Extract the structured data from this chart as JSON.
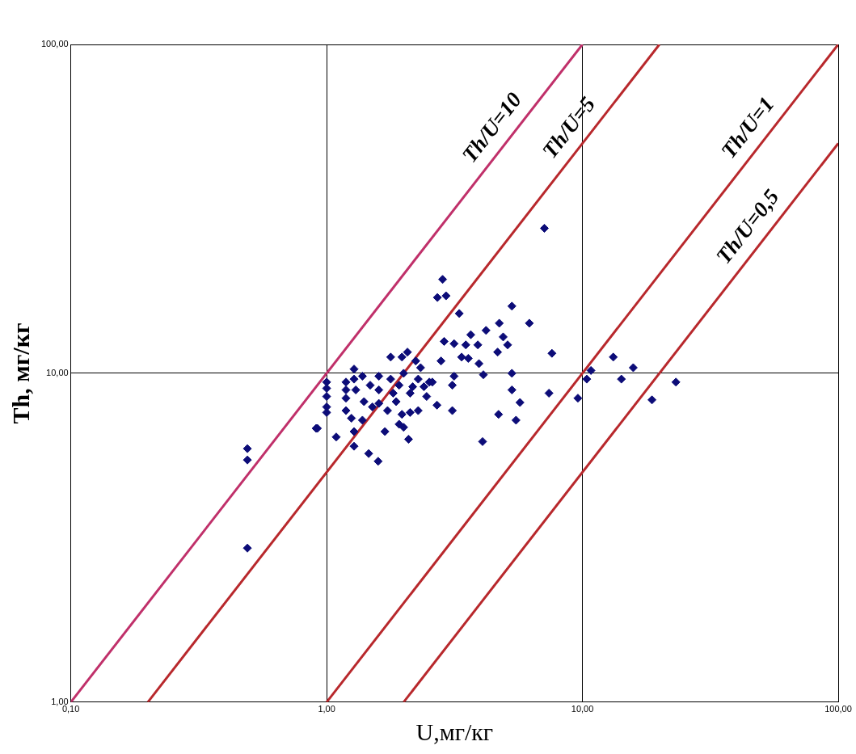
{
  "chart_data": {
    "type": "scatter",
    "xlabel": "U,мг/кг",
    "ylabel": "Th, мг/кг",
    "log": "xy",
    "grid": true,
    "legend": false,
    "xlim": [
      0.1,
      100
    ],
    "ylim": [
      1,
      100
    ],
    "xticks": [
      {
        "value": 0.1,
        "label": "0,10"
      },
      {
        "value": 1,
        "label": "1,00"
      },
      {
        "value": 10,
        "label": "10,00"
      },
      {
        "value": 100,
        "label": "100,00"
      }
    ],
    "yticks": [
      {
        "value": 1,
        "label": "1,00"
      },
      {
        "value": 10,
        "label": "10,00"
      },
      {
        "value": 100,
        "label": "100,00"
      }
    ],
    "series": [
      {
        "marker": "diamond",
        "color": "#0c0c78",
        "x": [
          0.49,
          0.49,
          0.49,
          0.92,
          1.0,
          1.0,
          1.0,
          1.0,
          1.0,
          2.84,
          2.71,
          2.93,
          3.3,
          5.3,
          4.73,
          4.2,
          3.66,
          2.88,
          3.15,
          3.5,
          3.9,
          4.9,
          5.1,
          4.66,
          3.37,
          3.58,
          2.8,
          3.94,
          4.1,
          5.3,
          3.15,
          3.1,
          5.3,
          5.7,
          4.7,
          5.5,
          4.07,
          2.7,
          3.1,
          1.28,
          1.28,
          1.19,
          1.19,
          1.19,
          1.19,
          1.3,
          1.38,
          1.4,
          1.48,
          1.51,
          1.6,
          1.6,
          1.78,
          1.78,
          1.82,
          1.73,
          1.97,
          2.07,
          2.0,
          1.92,
          1.87,
          1.97,
          2.23,
          2.33,
          2.28,
          2.17,
          2.12,
          2.4,
          2.52,
          2.59,
          2.46,
          2.28,
          2.12,
          1.6,
          1.25,
          1.28,
          1.09,
          0.91,
          1.28,
          1.46,
          1.59,
          1.69,
          1.92,
          2.0,
          2.09,
          1.38,
          6.2,
          7.6,
          7.4,
          9.6,
          10.4,
          10.8,
          13.2,
          14.2,
          15.8,
          18.7,
          23.2,
          7.1
        ],
        "values": [
          5.9,
          5.45,
          2.94,
          6.8,
          9.4,
          9.0,
          8.5,
          7.9,
          7.6,
          19.3,
          17.0,
          17.2,
          15.2,
          16.0,
          14.2,
          13.5,
          13.1,
          12.5,
          12.3,
          12.2,
          12.2,
          12.9,
          12.2,
          11.6,
          11.2,
          11.1,
          10.9,
          10.7,
          9.9,
          10.0,
          9.8,
          9.2,
          8.9,
          8.15,
          7.5,
          7.2,
          6.2,
          8.0,
          7.7,
          10.3,
          9.6,
          9.4,
          8.9,
          8.4,
          7.7,
          8.9,
          9.8,
          8.2,
          9.2,
          7.9,
          9.8,
          8.9,
          11.2,
          9.6,
          8.7,
          7.7,
          11.2,
          11.6,
          10.0,
          9.2,
          8.2,
          7.5,
          10.9,
          10.4,
          9.6,
          9.1,
          8.7,
          9.1,
          9.4,
          9.4,
          8.5,
          7.7,
          7.6,
          8.1,
          7.3,
          6.65,
          6.4,
          6.8,
          6.0,
          5.7,
          5.4,
          6.65,
          7.0,
          6.85,
          6.3,
          7.2,
          14.2,
          11.5,
          8.7,
          8.4,
          9.6,
          10.2,
          11.2,
          9.6,
          10.4,
          8.3,
          9.4,
          27.6
        ]
      },
      {
        "type": "line",
        "marker": "none",
        "name": "Th/U=10",
        "color": "#c0306a",
        "x": [
          0.1,
          10
        ],
        "values": [
          1,
          100
        ]
      },
      {
        "type": "line",
        "marker": "none",
        "name": "Th/U=5",
        "color": "#b8282c",
        "x": [
          0.2,
          20
        ],
        "values": [
          1,
          100
        ]
      },
      {
        "type": "line",
        "marker": "none",
        "name": "Th/U=1",
        "color": "#b8282c",
        "x": [
          1,
          100
        ],
        "values": [
          1,
          100
        ]
      },
      {
        "type": "line",
        "marker": "none",
        "name": "Th/U=0,5",
        "color": "#b8282c",
        "x": [
          2,
          100
        ],
        "values": [
          1,
          50
        ]
      }
    ]
  }
}
